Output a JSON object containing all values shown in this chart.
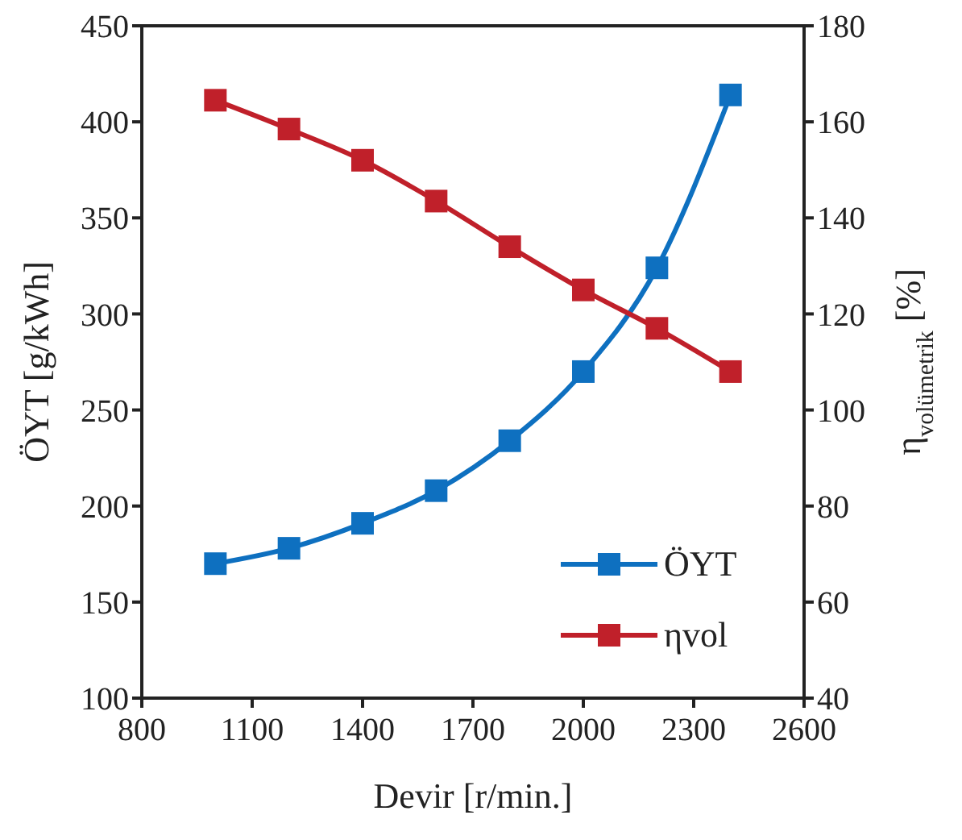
{
  "chart_data": {
    "type": "line",
    "xlabel": "Devir [r/min.]",
    "ylabel": "ÖYT [g/kWh]",
    "y2label": "η$_{volümetrik}$ [%]",
    "x": [
      1000,
      1200,
      1400,
      1600,
      1800,
      2000,
      2200,
      2400
    ],
    "series": [
      {
        "name": "ÖYT",
        "color": "#0e70c0",
        "values": [
          170,
          178,
          191,
          208,
          234,
          270,
          324,
          414
        ]
      },
      {
        "name": "ηvol",
        "color": "#c0202a",
        "axis": "y2",
        "values": [
          164.5,
          158.5,
          152,
          143.5,
          134,
          125,
          117,
          108
        ]
      }
    ],
    "xlim": [
      800,
      2600
    ],
    "xticks": [
      800,
      1100,
      1400,
      1700,
      2000,
      2300,
      2600
    ],
    "ylim": [
      100,
      450
    ],
    "yticks": [
      100,
      150,
      200,
      250,
      300,
      350,
      400,
      450
    ],
    "y2lim": [
      40,
      180
    ],
    "y2ticks": [
      40,
      60,
      80,
      100,
      120,
      140,
      160,
      180
    ],
    "marker": "square",
    "legend": "bottom right",
    "grid": false
  }
}
